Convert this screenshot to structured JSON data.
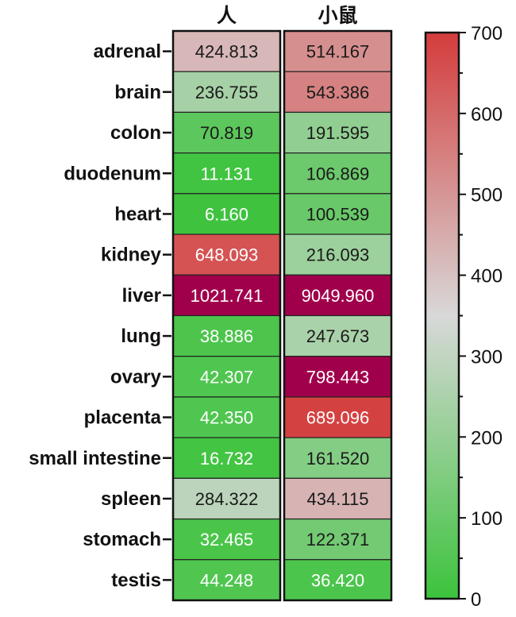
{
  "chart_data": {
    "type": "heatmap",
    "columns": [
      "人",
      "小鼠"
    ],
    "rows": [
      "adrenal",
      "brain",
      "colon",
      "duodenum",
      "heart",
      "kidney",
      "liver",
      "lung",
      "ovary",
      "placenta",
      "small intestine",
      "spleen",
      "stomach",
      "testis"
    ],
    "values": [
      [
        424.813,
        514.167
      ],
      [
        236.755,
        543.386
      ],
      [
        70.819,
        191.595
      ],
      [
        11.131,
        106.869
      ],
      [
        6.16,
        100.539
      ],
      [
        648.093,
        216.093
      ],
      [
        1021.741,
        9049.96
      ],
      [
        38.886,
        247.673
      ],
      [
        42.307,
        798.443
      ],
      [
        42.35,
        689.096
      ],
      [
        16.732,
        161.52
      ],
      [
        284.322,
        434.115
      ],
      [
        32.465,
        122.371
      ],
      [
        44.248,
        36.42
      ]
    ],
    "value_labels": [
      [
        "424.813",
        "514.167"
      ],
      [
        "236.755",
        "543.386"
      ],
      [
        "70.819",
        "191.595"
      ],
      [
        "11.131",
        "106.869"
      ],
      [
        "6.160",
        "100.539"
      ],
      [
        "648.093",
        "216.093"
      ],
      [
        "1021.741",
        "9049.960"
      ],
      [
        "38.886",
        "247.673"
      ],
      [
        "42.307",
        "798.443"
      ],
      [
        "42.350",
        "689.096"
      ],
      [
        "16.732",
        "161.520"
      ],
      [
        "284.322",
        "434.115"
      ],
      [
        "32.465",
        "122.371"
      ],
      [
        "44.248",
        "36.420"
      ]
    ],
    "colorbar": {
      "range": [
        0,
        700
      ],
      "ticks": [
        0,
        100,
        200,
        300,
        400,
        500,
        600,
        700
      ],
      "tick_labels": [
        "0",
        "100",
        "200",
        "300",
        "400",
        "500",
        "600",
        "700"
      ],
      "colors": [
        "#3cc33c",
        "#d8d8d8",
        "#d43c3c"
      ],
      "over_color": "#a0004b",
      "legend_placement": "right"
    },
    "grid": false,
    "title": "",
    "xlabel": "",
    "ylabel": ""
  }
}
